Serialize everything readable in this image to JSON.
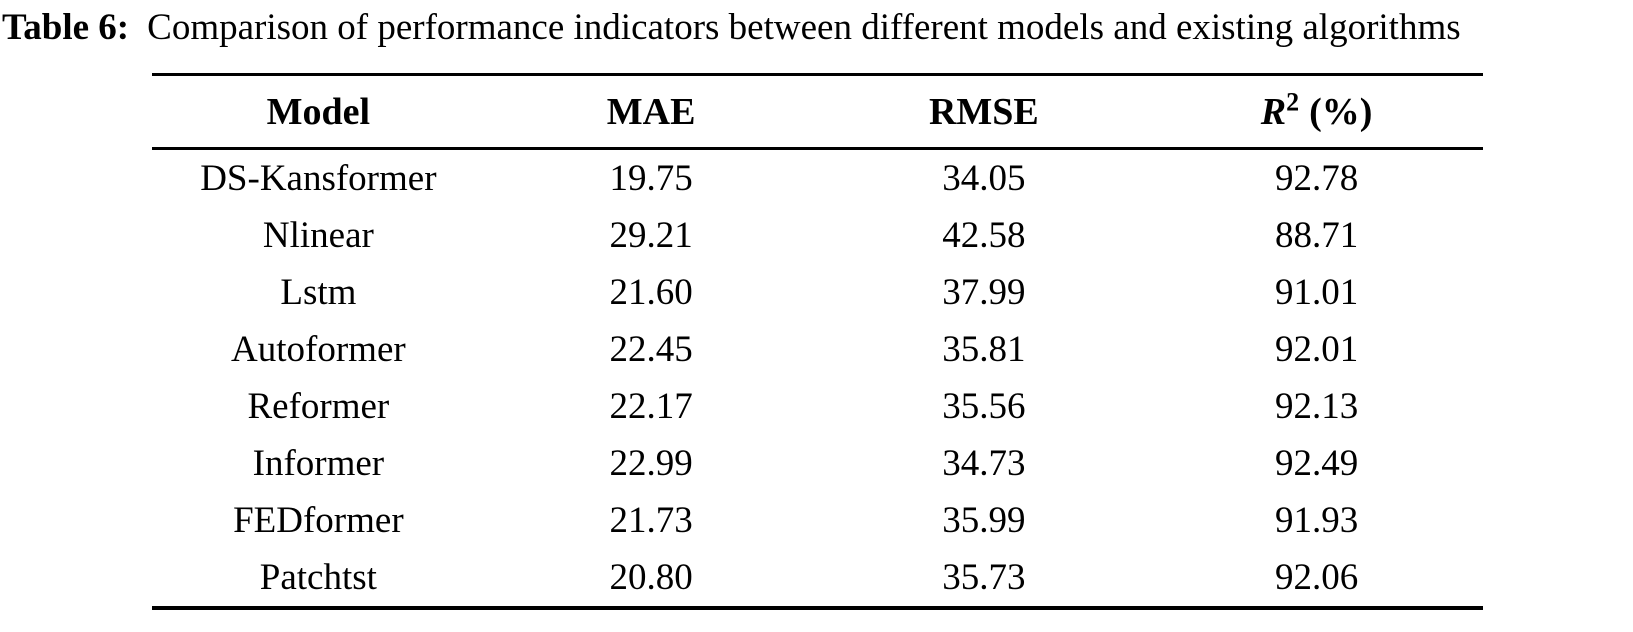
{
  "caption": {
    "label": "Table 6:",
    "text": "Comparison of performance indicators between different models and existing algorithms"
  },
  "table": {
    "headers": {
      "model": "Model",
      "mae": "MAE",
      "rmse": "RMSE",
      "r2_base": "R",
      "r2_sup": "2",
      "r2_unit": "(%)"
    },
    "rows": [
      {
        "model": "DS-Kansformer",
        "mae": "19.75",
        "rmse": "34.05",
        "r2": "92.78"
      },
      {
        "model": "Nlinear",
        "mae": "29.21",
        "rmse": "42.58",
        "r2": "88.71"
      },
      {
        "model": "Lstm",
        "mae": "21.60",
        "rmse": "37.99",
        "r2": "91.01"
      },
      {
        "model": "Autoformer",
        "mae": "22.45",
        "rmse": "35.81",
        "r2": "92.01"
      },
      {
        "model": "Reformer",
        "mae": "22.17",
        "rmse": "35.56",
        "r2": "92.13"
      },
      {
        "model": "Informer",
        "mae": "22.99",
        "rmse": "34.73",
        "r2": "92.49"
      },
      {
        "model": "FEDformer",
        "mae": "21.73",
        "rmse": "35.99",
        "r2": "91.93"
      },
      {
        "model": "Patchtst",
        "mae": "20.80",
        "rmse": "35.73",
        "r2": "92.06"
      }
    ]
  },
  "colors": {
    "text": "#000000",
    "background": "#ffffff",
    "rule": "#000000"
  }
}
